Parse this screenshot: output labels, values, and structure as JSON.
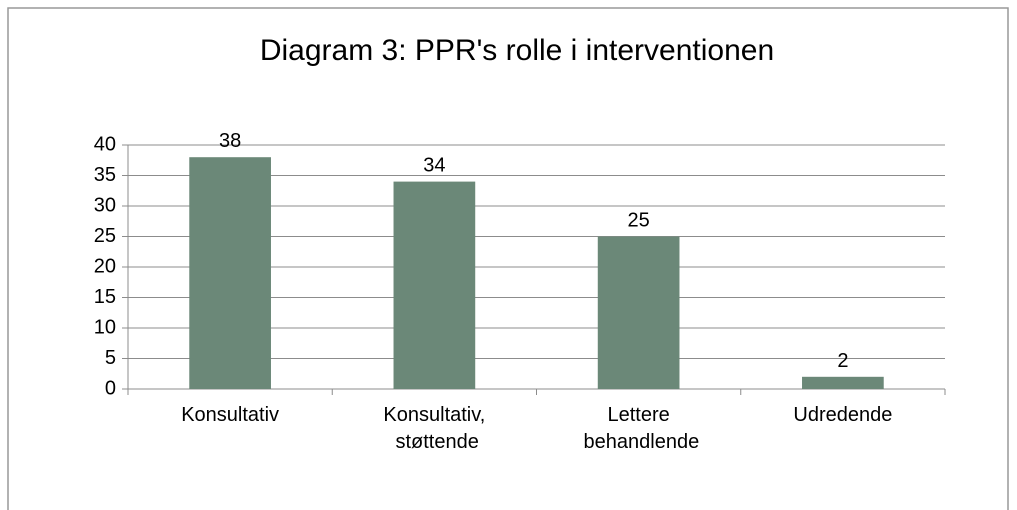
{
  "chart_data": {
    "type": "bar",
    "title": "Diagram 3: PPR's rolle i interventionen",
    "categories": [
      "Konsultativ",
      "Konsultativ, støttende",
      "Lettere behandlende",
      "Udredende"
    ],
    "values": [
      38,
      34,
      25,
      2
    ],
    "color": "#6b8878",
    "ylim": [
      0,
      40
    ],
    "yticks": [
      0,
      5,
      10,
      15,
      20,
      25,
      30,
      35,
      40
    ],
    "grid": true
  }
}
